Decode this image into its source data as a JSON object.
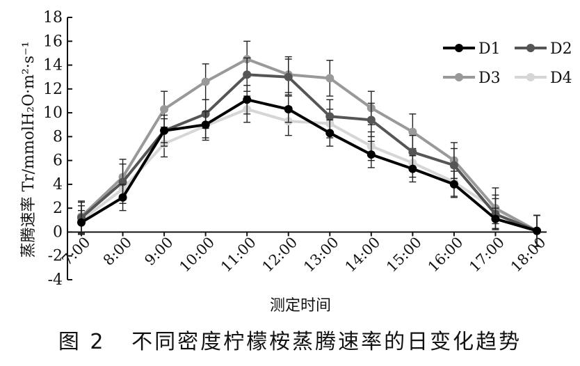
{
  "caption": "图 2   不同密度柠檬桉蒸腾速率的日变化趋势",
  "chart_data": {
    "type": "line",
    "title": "",
    "xlabel": "测定时间",
    "ylabel": "蒸腾速率 Tr/mmolH₂O·m²·s⁻¹",
    "ylim": [
      -4,
      18
    ],
    "yticks": [
      -4,
      -2,
      0,
      2,
      4,
      6,
      8,
      10,
      12,
      14,
      16,
      18
    ],
    "categories": [
      "7:00",
      "8:00",
      "9:00",
      "10:00",
      "11:00",
      "12:00",
      "13:00",
      "14:00",
      "15:00",
      "16:00",
      "17:00",
      "18:00"
    ],
    "legend_position": "top-right",
    "grid": false,
    "series": [
      {
        "name": "D1",
        "color": "#000000",
        "values": [
          0.8,
          2.9,
          8.5,
          9.0,
          11.1,
          10.3,
          8.3,
          6.5,
          5.3,
          4.0,
          1.1,
          0.1
        ],
        "errors": [
          1.0,
          1.1,
          1.0,
          1.1,
          1.2,
          1.1,
          1.1,
          1.1,
          1.1,
          1.1,
          0.9,
          1.3
        ]
      },
      {
        "name": "D2",
        "color": "#555555",
        "values": [
          1.2,
          4.2,
          8.5,
          9.9,
          13.2,
          13.0,
          9.7,
          9.4,
          6.7,
          5.6,
          1.5,
          0.1
        ],
        "errors": [
          1.3,
          1.5,
          1.3,
          1.2,
          1.4,
          1.5,
          1.4,
          1.4,
          1.4,
          1.4,
          1.3,
          1.3
        ]
      },
      {
        "name": "D3",
        "color": "#999999",
        "values": [
          1.3,
          4.6,
          10.3,
          12.6,
          14.5,
          13.2,
          12.9,
          10.4,
          8.4,
          6.0,
          2.0,
          0.1
        ],
        "errors": [
          1.3,
          1.5,
          1.5,
          1.5,
          1.5,
          1.5,
          1.5,
          1.4,
          1.5,
          1.5,
          1.7,
          1.3
        ]
      },
      {
        "name": "D4",
        "color": "#d6d6d6",
        "values": [
          1.0,
          3.6,
          7.4,
          8.9,
          10.3,
          9.3,
          9.1,
          7.2,
          5.8,
          4.2,
          1.9,
          0.1
        ],
        "errors": [
          1.2,
          1.2,
          1.1,
          1.2,
          1.1,
          1.2,
          1.2,
          1.2,
          1.2,
          1.2,
          1.2,
          1.3
        ]
      }
    ]
  }
}
